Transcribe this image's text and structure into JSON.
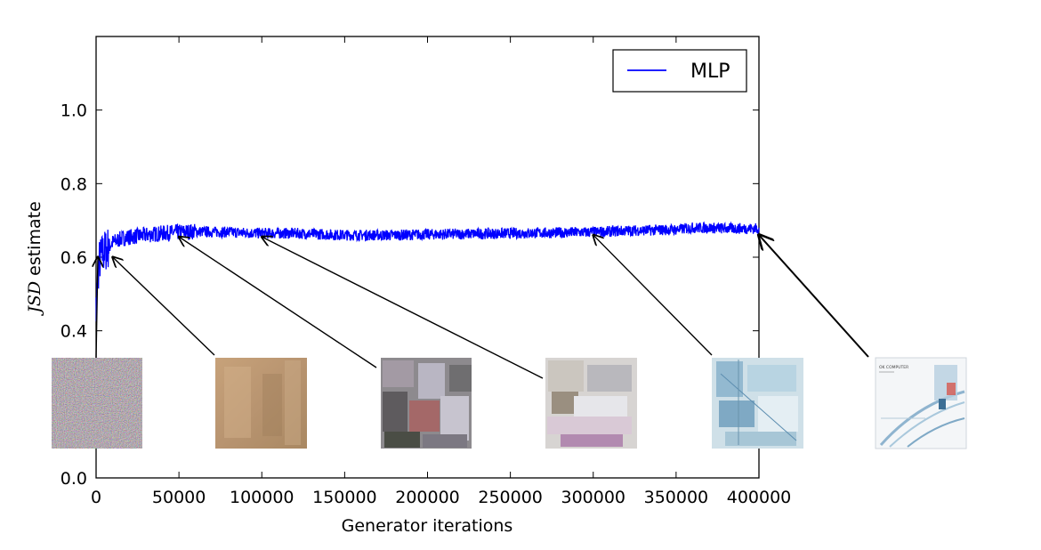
{
  "chart_data": {
    "type": "line",
    "xlabel": "Generator iterations",
    "ylabel": "JSD estimate",
    "xlim": [
      0,
      400000
    ],
    "ylim": [
      0.0,
      1.2
    ],
    "xticks": [
      0,
      50000,
      100000,
      150000,
      200000,
      250000,
      300000,
      350000,
      400000
    ],
    "xtick_labels": [
      "0",
      "50000",
      "100000",
      "150000",
      "200000",
      "250000",
      "300000",
      "350000",
      "400000"
    ],
    "yticks": [
      0.0,
      0.4,
      0.6,
      0.8,
      1.0
    ],
    "ytick_labels": [
      "0.0",
      "0.4",
      "0.6",
      "0.8",
      "1.0"
    ],
    "grid": false,
    "legend": "upper right",
    "series": [
      {
        "name": "MLP",
        "color": "#0000ff",
        "x": [
          0,
          1000,
          2000,
          4000,
          6000,
          8000,
          10000,
          15000,
          20000,
          30000,
          40000,
          50000,
          60000,
          80000,
          100000,
          120000,
          150000,
          180000,
          200000,
          250000,
          300000,
          320000,
          350000,
          360000,
          370000,
          380000,
          400000
        ],
        "y": [
          0.44,
          0.55,
          0.59,
          0.61,
          0.62,
          0.63,
          0.64,
          0.65,
          0.655,
          0.66,
          0.665,
          0.668,
          0.67,
          0.668,
          0.665,
          0.665,
          0.66,
          0.66,
          0.662,
          0.665,
          0.668,
          0.672,
          0.675,
          0.68,
          0.68,
          0.678,
          0.678
        ]
      }
    ],
    "annotations": [
      {
        "image": "noise",
        "points_to_x": 0,
        "points_to_y": 0.61
      },
      {
        "image": "beige-texture",
        "points_to_x": 10000,
        "points_to_y": 0.61
      },
      {
        "image": "blurry-shapes",
        "points_to_x": 50000,
        "points_to_y": 0.665
      },
      {
        "image": "pastel-abstract",
        "points_to_x": 100000,
        "points_to_y": 0.665
      },
      {
        "image": "blue-sketch",
        "points_to_x": 300000,
        "points_to_y": 0.67
      },
      {
        "image": "album-cover",
        "points_to_x": 400000,
        "points_to_y": 0.67
      }
    ]
  },
  "album_cover_text": "OK COMPUTER"
}
